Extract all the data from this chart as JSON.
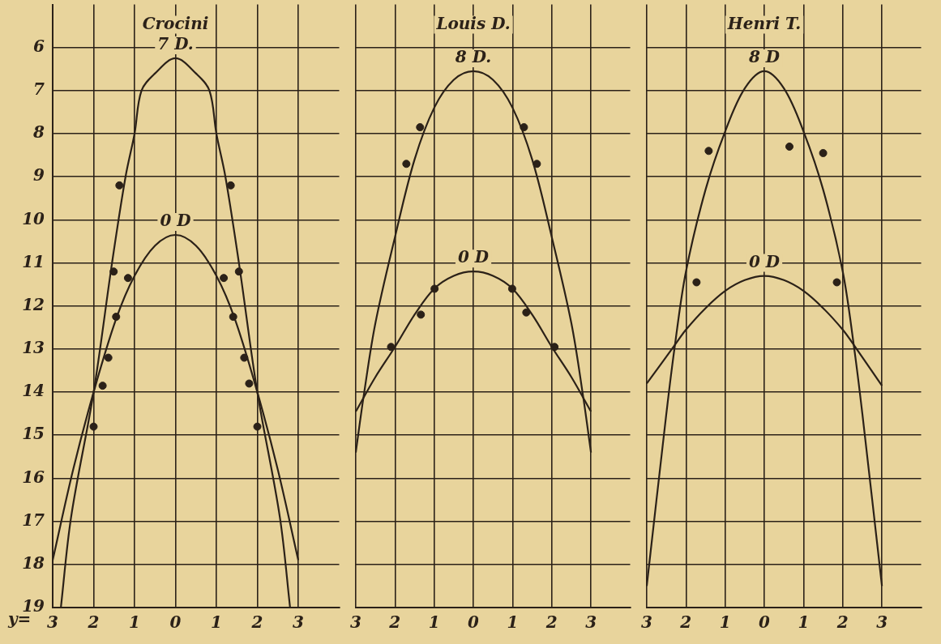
{
  "chart_data": [
    {
      "type": "line",
      "title": "Crocini",
      "xlabel": "y=",
      "xlim": [
        -3,
        4
      ],
      "ylim": [
        19,
        5
      ],
      "grid": true,
      "legend": false,
      "line_style": "solid",
      "marker": "none",
      "xticks": [
        {
          "value": -3,
          "label": "3"
        },
        {
          "value": -2,
          "label": "2"
        },
        {
          "value": -1,
          "label": "1"
        },
        {
          "value": 0,
          "label": "0"
        },
        {
          "value": 1,
          "label": "1"
        },
        {
          "value": 2,
          "label": "2"
        },
        {
          "value": 3,
          "label": "3"
        }
      ],
      "yticks": [
        6,
        7,
        8,
        9,
        10,
        11,
        12,
        13,
        14,
        15,
        16,
        17,
        18,
        19
      ],
      "series": [
        {
          "name": "7 D.",
          "color": "#2b2118",
          "x": [
            -2.8,
            -2.55,
            -2,
            -1.55,
            -1.22,
            -1,
            -0.83,
            -0.5,
            0,
            0.5,
            0.83,
            1,
            1.22,
            1.55,
            2,
            2.55,
            2.8
          ],
          "values": [
            19,
            16.9,
            14,
            11,
            9,
            8,
            7,
            6.6,
            6.25,
            6.6,
            7,
            8,
            9,
            11,
            14,
            16.9,
            19
          ]
        },
        {
          "name": "0 D",
          "color": "#2b2118",
          "x": [
            -3,
            -2.5,
            -2,
            -1.45,
            -1,
            -0.5,
            0,
            0.5,
            1,
            1.45,
            2,
            2.5,
            3
          ],
          "values": [
            17.9,
            15.8,
            14,
            12.3,
            11.3,
            10.6,
            10.35,
            10.6,
            11.3,
            12.3,
            14,
            15.8,
            17.9
          ]
        },
        {
          "type": "scatter",
          "marker": "circle",
          "color": "#2b2118",
          "x": [
            -1.37,
            1.35,
            -1.51,
            1.55,
            -1.64,
            1.68,
            -2,
            2
          ],
          "values": [
            9.2,
            9.2,
            11.2,
            11.2,
            13.2,
            13.2,
            14.8,
            14.8
          ]
        },
        {
          "type": "scatter",
          "marker": "circle",
          "color": "#2b2118",
          "x": [
            -1.16,
            1.18,
            -1.45,
            1.41,
            -1.78,
            1.8
          ],
          "values": [
            11.35,
            11.35,
            12.25,
            12.25,
            13.85,
            13.8
          ]
        }
      ]
    },
    {
      "type": "line",
      "title": "Louis D.",
      "xlim": [
        -3,
        4
      ],
      "ylim": [
        19,
        5
      ],
      "grid": true,
      "legend": false,
      "tick_labels": "x",
      "line_style": "solid",
      "marker": "none",
      "xticks": [
        {
          "value": -3,
          "label": "3"
        },
        {
          "value": -2,
          "label": "2"
        },
        {
          "value": -1,
          "label": "1"
        },
        {
          "value": 0,
          "label": "0"
        },
        {
          "value": 1,
          "label": "1"
        },
        {
          "value": 2,
          "label": "2"
        },
        {
          "value": 3,
          "label": "3"
        }
      ],
      "yticks": [
        6,
        7,
        8,
        9,
        10,
        11,
        12,
        13,
        14,
        15,
        16,
        17,
        18,
        19
      ],
      "series": [
        {
          "name": "8 D.",
          "color": "#2b2118",
          "x": [
            -3,
            -2.8,
            -2.5,
            -2,
            -1.5,
            -1,
            -0.5,
            0,
            0.5,
            1,
            1.5,
            2,
            2.5,
            2.8,
            3
          ],
          "values": [
            15.4,
            14.1,
            12.4,
            10.4,
            8.6,
            7.4,
            6.75,
            6.55,
            6.75,
            7.4,
            8.6,
            10.4,
            12.4,
            14.1,
            15.4
          ]
        },
        {
          "name": "0 D",
          "color": "#2b2118",
          "x": [
            -3,
            -2.5,
            -2,
            -1.5,
            -1,
            -0.5,
            0,
            0.5,
            1,
            1.5,
            2,
            2.5,
            3
          ],
          "values": [
            14.45,
            13.65,
            12.95,
            12.2,
            11.6,
            11.3,
            11.2,
            11.3,
            11.6,
            12.2,
            12.95,
            13.65,
            14.45
          ]
        },
        {
          "type": "scatter",
          "marker": "circle",
          "color": "#2b2118",
          "x": [
            -1.36,
            -1.71,
            1.29,
            1.62,
            2.07
          ],
          "values": [
            7.85,
            8.7,
            7.85,
            8.7,
            12.95
          ]
        },
        {
          "type": "scatter",
          "marker": "circle",
          "color": "#2b2118",
          "x": [
            -0.99,
            -1.34,
            0.99,
            1.35,
            -2.1
          ],
          "values": [
            11.6,
            12.2,
            11.6,
            12.15,
            12.95
          ]
        }
      ]
    },
    {
      "type": "line",
      "title": "Henri T.",
      "xlim": [
        -3,
        4
      ],
      "ylim": [
        19,
        5
      ],
      "grid": true,
      "legend": false,
      "tick_labels": "x",
      "line_style": "solid",
      "marker": "none",
      "xticks": [
        {
          "value": -3,
          "label": "3"
        },
        {
          "value": -2,
          "label": "2"
        },
        {
          "value": -1,
          "label": "1"
        },
        {
          "value": 0,
          "label": "0"
        },
        {
          "value": 1,
          "label": "1"
        },
        {
          "value": 2,
          "label": "2"
        },
        {
          "value": 3,
          "label": "3"
        }
      ],
      "yticks": [
        6,
        7,
        8,
        9,
        10,
        11,
        12,
        13,
        14,
        15,
        16,
        17,
        18,
        19
      ],
      "series": [
        {
          "name": "8 D",
          "color": "#2b2118",
          "x": [
            -3,
            -2.5,
            -2.28,
            -2,
            -1.5,
            -1,
            -0.5,
            0,
            0.5,
            1,
            1.5,
            2,
            2.28,
            2.5,
            3
          ],
          "values": [
            18.5,
            14.5,
            12.9,
            11.2,
            9.3,
            7.95,
            6.95,
            6.55,
            6.95,
            7.95,
            9.3,
            11.2,
            12.9,
            14.5,
            18.5
          ]
        },
        {
          "name": "0 D",
          "color": "#2b2118",
          "x": [
            -3,
            -2.28,
            -2,
            -1.5,
            -1,
            -0.5,
            0,
            0.5,
            1,
            1.5,
            2,
            2.28,
            3
          ],
          "values": [
            13.8,
            12.9,
            12.55,
            12.05,
            11.65,
            11.4,
            11.3,
            11.4,
            11.65,
            12.05,
            12.55,
            12.9,
            13.85
          ]
        },
        {
          "type": "scatter",
          "marker": "circle",
          "color": "#2b2118",
          "x": [
            -1.42,
            0.64,
            1.5,
            -1.73,
            1.85
          ],
          "values": [
            8.4,
            8.3,
            8.45,
            11.45,
            11.45
          ]
        }
      ]
    }
  ]
}
